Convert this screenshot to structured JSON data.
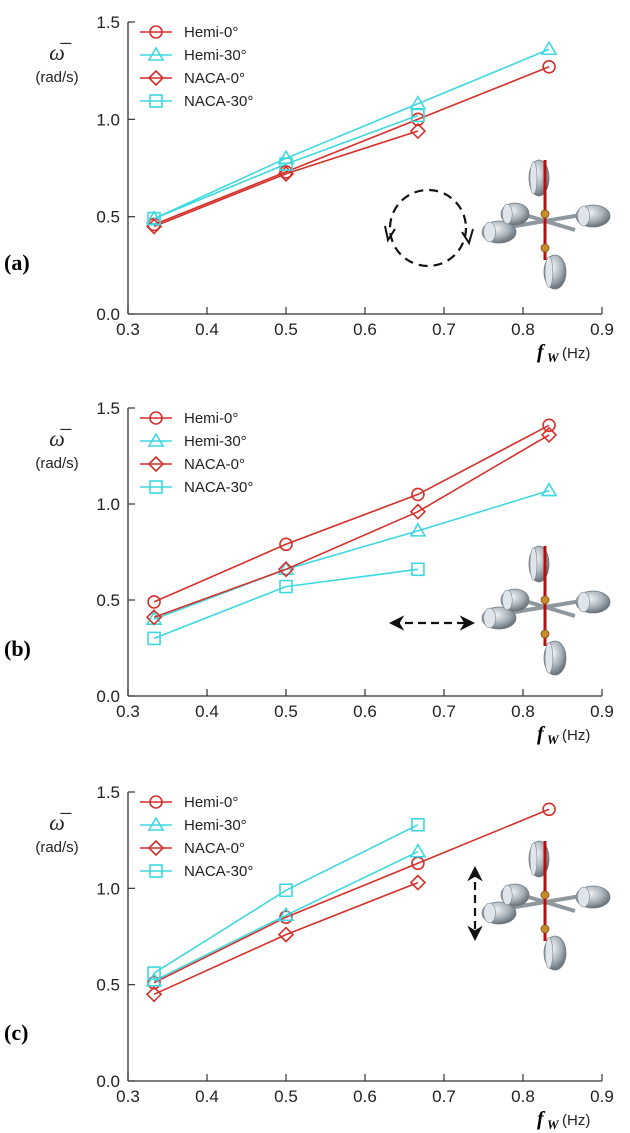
{
  "panels": [
    {
      "label": "(a)",
      "inset_motion": "circular",
      "ylabel_symbol": "ω̅",
      "ylabel_unit": "(rad/s)",
      "xlabel_symbol": "f",
      "xlabel_subscript": "W",
      "xlabel_unit": "(Hz)"
    },
    {
      "label": "(b)",
      "inset_motion": "horizontal",
      "ylabel_symbol": "ω̅",
      "ylabel_unit": "(rad/s)",
      "xlabel_symbol": "f",
      "xlabel_subscript": "W",
      "xlabel_unit": "(Hz)"
    },
    {
      "label": "(c)",
      "inset_motion": "vertical",
      "ylabel_symbol": "ω̅",
      "ylabel_unit": "(rad/s)",
      "xlabel_symbol": "f",
      "xlabel_subscript": "W",
      "xlabel_unit": "(Hz)"
    }
  ],
  "colors": {
    "red": "#d62f2a",
    "cyan": "#3ed8e0",
    "rod": "#b01010",
    "cup": "#a9b3bb"
  },
  "chart_data": [
    {
      "type": "line",
      "xlim": [
        0.3,
        0.9
      ],
      "ylim": [
        0.0,
        1.5
      ],
      "xticks": [
        "0.3",
        "0.4",
        "0.5",
        "0.6",
        "0.7",
        "0.8",
        "0.9"
      ],
      "yticks": [
        "0.0",
        "0.5",
        "1.0",
        "1.5"
      ],
      "legend_position": "top-left",
      "series": [
        {
          "name": "Hemi-0°",
          "marker": "circle",
          "color": "#d62f2a",
          "x": [
            0.333,
            0.5,
            0.667,
            0.833
          ],
          "y": [
            0.46,
            0.73,
            1.0,
            1.27
          ]
        },
        {
          "name": "Hemi-30°",
          "marker": "triangle",
          "color": "#3ed8e0",
          "x": [
            0.333,
            0.5,
            0.667,
            0.833
          ],
          "y": [
            0.49,
            0.8,
            1.08,
            1.36
          ]
        },
        {
          "name": "NACA-0°",
          "marker": "diamond",
          "color": "#d62f2a",
          "x": [
            0.333,
            0.5,
            0.667
          ],
          "y": [
            0.45,
            0.72,
            0.94
          ]
        },
        {
          "name": "NACA-30°",
          "marker": "square",
          "color": "#3ed8e0",
          "x": [
            0.333,
            0.5,
            0.667
          ],
          "y": [
            0.49,
            0.77,
            1.02
          ]
        }
      ]
    },
    {
      "type": "line",
      "xlim": [
        0.3,
        0.9
      ],
      "ylim": [
        0.0,
        1.5
      ],
      "xticks": [
        "0.3",
        "0.4",
        "0.5",
        "0.6",
        "0.7",
        "0.8",
        "0.9"
      ],
      "yticks": [
        "0.0",
        "0.5",
        "1.0",
        "1.5"
      ],
      "legend_position": "top-left",
      "series": [
        {
          "name": "Hemi-0°",
          "marker": "circle",
          "color": "#d62f2a",
          "x": [
            0.333,
            0.5,
            0.667,
            0.833
          ],
          "y": [
            0.49,
            0.79,
            1.05,
            1.41
          ]
        },
        {
          "name": "Hemi-30°",
          "marker": "triangle",
          "color": "#3ed8e0",
          "x": [
            0.333,
            0.5,
            0.667,
            0.833
          ],
          "y": [
            0.4,
            0.66,
            0.86,
            1.07
          ]
        },
        {
          "name": "NACA-0°",
          "marker": "diamond",
          "color": "#d62f2a",
          "x": [
            0.333,
            0.5,
            0.667,
            0.833
          ],
          "y": [
            0.41,
            0.66,
            0.96,
            1.36
          ]
        },
        {
          "name": "NACA-30°",
          "marker": "square",
          "color": "#3ed8e0",
          "x": [
            0.333,
            0.5,
            0.667
          ],
          "y": [
            0.3,
            0.57,
            0.66
          ]
        }
      ]
    },
    {
      "type": "line",
      "xlim": [
        0.3,
        0.9
      ],
      "ylim": [
        0.0,
        1.5
      ],
      "xticks": [
        "0.3",
        "0.4",
        "0.5",
        "0.6",
        "0.7",
        "0.8",
        "0.9"
      ],
      "yticks": [
        "0.0",
        "0.5",
        "1.0",
        "1.5"
      ],
      "legend_position": "top-left",
      "series": [
        {
          "name": "Hemi-0°",
          "marker": "circle",
          "color": "#d62f2a",
          "x": [
            0.333,
            0.5,
            0.667,
            0.833
          ],
          "y": [
            0.51,
            0.85,
            1.13,
            1.41
          ]
        },
        {
          "name": "Hemi-30°",
          "marker": "triangle",
          "color": "#3ed8e0",
          "x": [
            0.333,
            0.5,
            0.667
          ],
          "y": [
            0.52,
            0.86,
            1.19
          ]
        },
        {
          "name": "NACA-0°",
          "marker": "diamond",
          "color": "#d62f2a",
          "x": [
            0.333,
            0.5,
            0.667
          ],
          "y": [
            0.45,
            0.76,
            1.03
          ]
        },
        {
          "name": "NACA-30°",
          "marker": "square",
          "color": "#3ed8e0",
          "x": [
            0.333,
            0.5,
            0.667
          ],
          "y": [
            0.56,
            0.99,
            1.33
          ]
        }
      ]
    }
  ]
}
